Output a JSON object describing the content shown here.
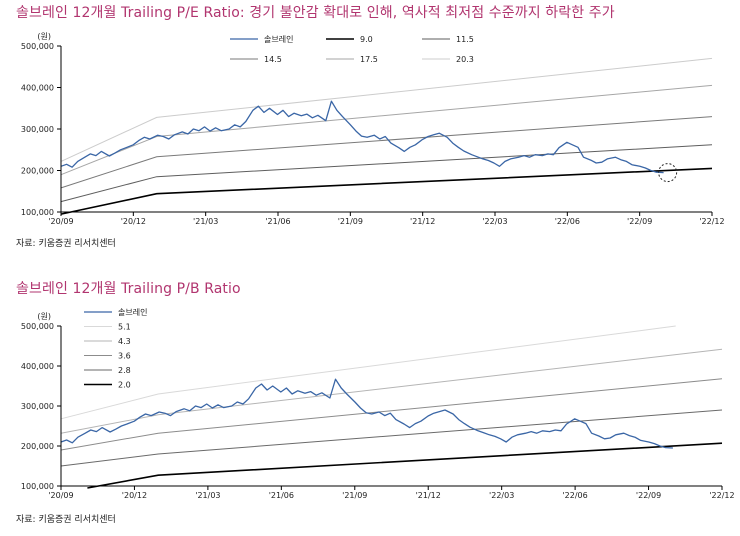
{
  "page": {
    "title_pe": "솔브레인 12개월 Trailing P/E Ratio: 경기 불안감 확대로 인해, 역사적 최저점 수준까지 하락한 주가",
    "title_pb": "솔브레인 12개월 Trailing P/B Ratio",
    "source_pe": "자료: 키움증권 리서치센터",
    "source_pb": "자료: 키움증권 리서치센터"
  },
  "chart_data": [
    {
      "type": "line",
      "title": "솔브레인 12개월 Trailing P/E Ratio: 경기 불안감 확대로 인해, 역사적 최저점 수준까지 하락한 주가",
      "unit_label": "(원)",
      "x_tick_labels": [
        "'20/09",
        "'20/12",
        "'21/03",
        "'21/06",
        "'21/09",
        "'21/12",
        "'22/03",
        "'22/06",
        "'22/09",
        "'22/12"
      ],
      "y_tick_labels": [
        "100,000",
        "200,000",
        "300,000",
        "400,000",
        "500,000"
      ],
      "ylim": [
        100000,
        500000
      ],
      "legend_position": "top",
      "annotation": "dashed circle around the latest price (Oct 2022)",
      "price_series": {
        "name": "솔브레인",
        "color": "#3a66a6",
        "points": [
          [
            "2020-09-01",
            210000
          ],
          [
            "2020-09-08",
            215000
          ],
          [
            "2020-09-15",
            208000
          ],
          [
            "2020-09-22",
            222000
          ],
          [
            "2020-10-01",
            232000
          ],
          [
            "2020-10-08",
            240000
          ],
          [
            "2020-10-15",
            236000
          ],
          [
            "2020-10-22",
            246000
          ],
          [
            "2020-11-01",
            235000
          ],
          [
            "2020-11-08",
            242000
          ],
          [
            "2020-11-15",
            250000
          ],
          [
            "2020-11-22",
            255000
          ],
          [
            "2020-12-01",
            262000
          ],
          [
            "2020-12-08",
            272000
          ],
          [
            "2020-12-15",
            280000
          ],
          [
            "2020-12-22",
            276000
          ],
          [
            "2021-01-01",
            285000
          ],
          [
            "2021-01-08",
            282000
          ],
          [
            "2021-01-15",
            276000
          ],
          [
            "2021-01-22",
            286000
          ],
          [
            "2021-02-01",
            293000
          ],
          [
            "2021-02-08",
            288000
          ],
          [
            "2021-02-15",
            300000
          ],
          [
            "2021-02-22",
            296000
          ],
          [
            "2021-03-01",
            305000
          ],
          [
            "2021-03-08",
            295000
          ],
          [
            "2021-03-15",
            303000
          ],
          [
            "2021-03-22",
            296000
          ],
          [
            "2021-04-01",
            300000
          ],
          [
            "2021-04-08",
            310000
          ],
          [
            "2021-04-15",
            305000
          ],
          [
            "2021-04-22",
            318000
          ],
          [
            "2021-05-01",
            345000
          ],
          [
            "2021-05-08",
            355000
          ],
          [
            "2021-05-15",
            340000
          ],
          [
            "2021-05-22",
            350000
          ],
          [
            "2021-06-01",
            335000
          ],
          [
            "2021-06-08",
            345000
          ],
          [
            "2021-06-15",
            330000
          ],
          [
            "2021-06-22",
            338000
          ],
          [
            "2021-07-01",
            332000
          ],
          [
            "2021-07-08",
            336000
          ],
          [
            "2021-07-15",
            327000
          ],
          [
            "2021-07-22",
            333000
          ],
          [
            "2021-08-01",
            320000
          ],
          [
            "2021-08-08",
            367000
          ],
          [
            "2021-08-15",
            345000
          ],
          [
            "2021-08-22",
            330000
          ],
          [
            "2021-09-01",
            310000
          ],
          [
            "2021-09-08",
            295000
          ],
          [
            "2021-09-15",
            283000
          ],
          [
            "2021-09-22",
            280000
          ],
          [
            "2021-10-01",
            285000
          ],
          [
            "2021-10-08",
            276000
          ],
          [
            "2021-10-15",
            282000
          ],
          [
            "2021-10-22",
            266000
          ],
          [
            "2021-11-01",
            255000
          ],
          [
            "2021-11-08",
            246000
          ],
          [
            "2021-11-15",
            256000
          ],
          [
            "2021-11-22",
            262000
          ],
          [
            "2021-12-01",
            275000
          ],
          [
            "2021-12-08",
            282000
          ],
          [
            "2021-12-15",
            286000
          ],
          [
            "2021-12-22",
            290000
          ],
          [
            "2022-01-01",
            280000
          ],
          [
            "2022-01-08",
            266000
          ],
          [
            "2022-01-15",
            256000
          ],
          [
            "2022-01-22",
            247000
          ],
          [
            "2022-02-01",
            238000
          ],
          [
            "2022-02-08",
            233000
          ],
          [
            "2022-02-15",
            228000
          ],
          [
            "2022-02-22",
            224000
          ],
          [
            "2022-03-01",
            218000
          ],
          [
            "2022-03-08",
            210000
          ],
          [
            "2022-03-15",
            222000
          ],
          [
            "2022-03-22",
            228000
          ],
          [
            "2022-04-01",
            232000
          ],
          [
            "2022-04-08",
            236000
          ],
          [
            "2022-04-15",
            232000
          ],
          [
            "2022-04-22",
            238000
          ],
          [
            "2022-05-01",
            236000
          ],
          [
            "2022-05-08",
            240000
          ],
          [
            "2022-05-15",
            238000
          ],
          [
            "2022-05-22",
            255000
          ],
          [
            "2022-06-01",
            268000
          ],
          [
            "2022-06-08",
            262000
          ],
          [
            "2022-06-15",
            256000
          ],
          [
            "2022-06-22",
            232000
          ],
          [
            "2022-07-01",
            225000
          ],
          [
            "2022-07-08",
            218000
          ],
          [
            "2022-07-15",
            220000
          ],
          [
            "2022-07-22",
            228000
          ],
          [
            "2022-08-01",
            232000
          ],
          [
            "2022-08-08",
            226000
          ],
          [
            "2022-08-15",
            222000
          ],
          [
            "2022-08-22",
            214000
          ],
          [
            "2022-09-01",
            210000
          ],
          [
            "2022-09-08",
            206000
          ],
          [
            "2022-09-15",
            200000
          ],
          [
            "2022-09-22",
            196000
          ],
          [
            "2022-10-01",
            195000
          ]
        ]
      },
      "band_series": [
        {
          "name": "9.0",
          "color": "#000000",
          "width": 1.6,
          "values": [
            [
              0,
              95000
            ],
            [
              0.147,
              144000
            ],
            [
              1.0,
              205000
            ]
          ]
        },
        {
          "name": "11.5",
          "color": "#5e5e5e",
          "width": 1,
          "values": [
            [
              0,
              125000
            ],
            [
              0.147,
              185000
            ],
            [
              1.0,
              262000
            ]
          ]
        },
        {
          "name": "14.5",
          "color": "#7a7a7a",
          "width": 1,
          "values": [
            [
              0,
              158000
            ],
            [
              0.147,
              233000
            ],
            [
              1.0,
              330000
            ]
          ]
        },
        {
          "name": "17.5",
          "color": "#a6a6a6",
          "width": 1,
          "values": [
            [
              0,
              190000
            ],
            [
              0.147,
              282000
            ],
            [
              1.0,
              405000
            ]
          ]
        },
        {
          "name": "20.3",
          "color": "#cccccc",
          "width": 1,
          "values": [
            [
              0,
              222000
            ],
            [
              0.147,
              328000
            ],
            [
              1.0,
              470000
            ]
          ]
        }
      ]
    },
    {
      "type": "line",
      "title": "솔브레인 12개월 Trailing P/B Ratio",
      "unit_label": "(원)",
      "x_tick_labels": [
        "'20/09",
        "'20/12",
        "'21/03",
        "'21/06",
        "'21/09",
        "'21/12",
        "'22/03",
        "'22/06",
        "'22/09",
        "'22/12"
      ],
      "y_tick_labels": [
        "100,000",
        "200,000",
        "300,000",
        "400,000",
        "500,000"
      ],
      "ylim": [
        100000,
        500000
      ],
      "legend_position": "top-left",
      "price_series": {
        "name": "솔브레인",
        "color": "#3a66a6",
        "points": "same as P/E chart"
      },
      "band_series": [
        {
          "name": "5.1",
          "color": "#d9d9d9",
          "width": 1,
          "values": [
            [
              0.0,
              268000
            ],
            [
              0.147,
              330000
            ],
            [
              0.93,
              500000
            ]
          ]
        },
        {
          "name": "4.3",
          "color": "#b5b5b5",
          "width": 1,
          "values": [
            [
              0,
              232000
            ],
            [
              0.147,
              278000
            ],
            [
              1.0,
              442000
            ]
          ]
        },
        {
          "name": "3.6",
          "color": "#8c8c8c",
          "width": 1,
          "values": [
            [
              0,
              190000
            ],
            [
              0.147,
              232000
            ],
            [
              1.0,
              368000
            ]
          ]
        },
        {
          "name": "2.8",
          "color": "#6a6a6a",
          "width": 1,
          "values": [
            [
              0,
              150000
            ],
            [
              0.147,
              180000
            ],
            [
              1.0,
              290000
            ]
          ]
        },
        {
          "name": "2.0",
          "color": "#000000",
          "width": 1.6,
          "values": [
            [
              0.04,
              95000
            ],
            [
              0.147,
              127000
            ],
            [
              1.0,
              207000
            ]
          ]
        }
      ]
    }
  ]
}
